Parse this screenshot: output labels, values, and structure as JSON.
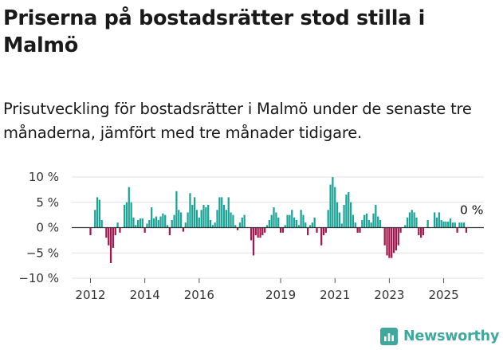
{
  "title": "Priserna på bostadsrätter stod stilla i Malmö",
  "subtitle": "Prisutveckling för bostadsrätter i Malmö under de senaste tre månaderna, jämfört med tre månader tidigare.",
  "brand": {
    "name": "Newsworthy",
    "icon": "newsworthy-logo-icon"
  },
  "colors": {
    "positive": "#1aa396",
    "negative": "#a3174f",
    "grid": "#e0e0e0",
    "zero_line": "#333333",
    "brand": "#3fa79d"
  },
  "chart_data": {
    "type": "bar",
    "x_start": "2012-01",
    "x_end": "2025-08",
    "ylim": [
      -10,
      10
    ],
    "y_ticks": [
      10,
      5,
      0,
      -5,
      -10
    ],
    "y_tick_labels": [
      "10 %",
      "5 %",
      "0 %",
      "−5 %",
      "−10 %"
    ],
    "x_ticks": [
      "2012",
      "2014",
      "2016",
      "2019",
      "2021",
      "2023",
      "2025"
    ],
    "x_tick_labels": [
      "2012",
      "2014",
      "2016",
      "2019",
      "2021",
      "2023",
      "2025"
    ],
    "last_value_label": "0 %",
    "grid": "horizontal",
    "monthly_change_pct": [
      -1.5,
      0,
      3.5,
      6,
      5.5,
      1.5,
      0,
      -2,
      -3.5,
      -7,
      -4,
      -1.5,
      1,
      -1,
      0,
      4.5,
      5,
      8,
      5,
      2,
      0.5,
      1.5,
      1.8,
      1.8,
      -1,
      0.8,
      1.5,
      4,
      1.8,
      2.2,
      1.5,
      2.2,
      2.8,
      2.5,
      0.5,
      -1.5,
      1.5,
      2.5,
      7.2,
      3.5,
      3,
      -0.8,
      1,
      3,
      6.8,
      4.5,
      6,
      3.5,
      2,
      3.5,
      4.5,
      4,
      4.5,
      1.5,
      0.5,
      1,
      3.5,
      6,
      6,
      4.5,
      3.5,
      6,
      3,
      2.5,
      0.5,
      -0.5,
      1,
      2,
      2.5,
      0,
      0,
      -2.5,
      -5.5,
      -1.5,
      -2,
      -2,
      -1.5,
      -1,
      0.5,
      1.5,
      2.5,
      4,
      3,
      2,
      -1,
      -1,
      0.5,
      2.5,
      2.5,
      3.5,
      2,
      1.5,
      0.5,
      3.5,
      2.5,
      1,
      -1.5,
      0.5,
      1,
      2,
      -1,
      0,
      -3.5,
      -1.5,
      -1,
      3.5,
      8.5,
      10,
      8,
      5,
      3,
      0.8,
      4.5,
      6.5,
      7,
      5,
      2.5,
      1,
      -1,
      -1,
      1.5,
      2.5,
      2.8,
      1.5,
      1,
      2.8,
      4.5,
      2.2,
      1.5,
      0,
      -3.5,
      -5.5,
      -6,
      -6,
      -5,
      -4.5,
      -3.5,
      -1,
      0,
      0.5,
      2,
      3,
      3.5,
      3,
      2,
      -1.5,
      -2,
      -1.5,
      0,
      1.5,
      0,
      0,
      3,
      2,
      3,
      1.5,
      1.2,
      1.2,
      1.2,
      1.8,
      1,
      1,
      -1,
      1,
      1,
      1,
      -1,
      0
    ]
  }
}
